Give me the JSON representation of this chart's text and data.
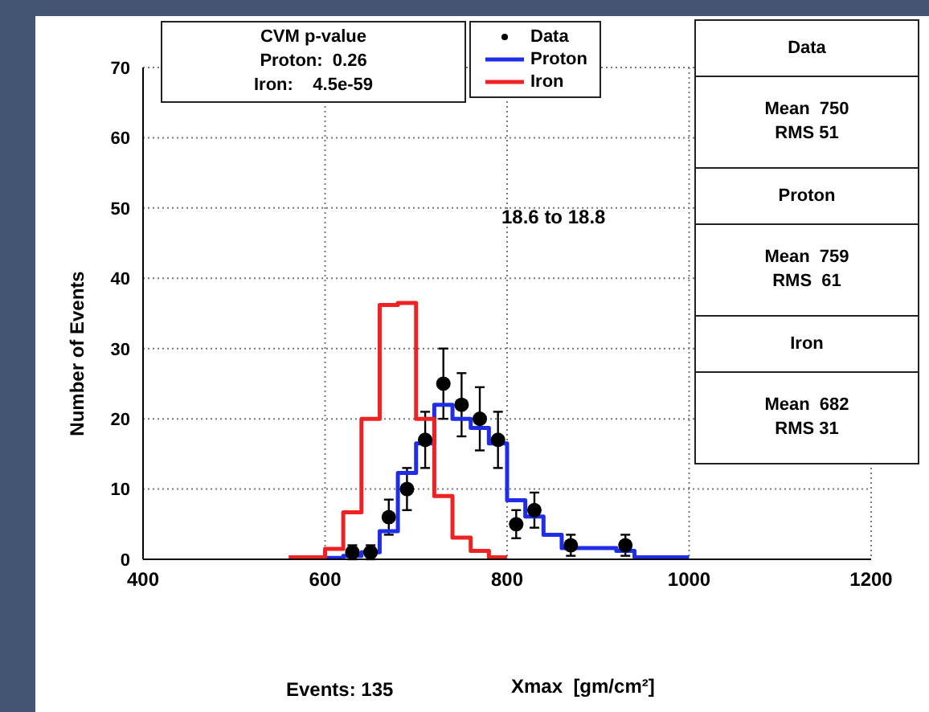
{
  "chart_data": {
    "type": "histogram",
    "xlabel": "Xmax  [gm/cm²]",
    "ylabel": "Number of Events",
    "xlim": [
      400,
      1200
    ],
    "xticks": [
      400,
      600,
      800,
      1000,
      1200
    ],
    "ylim": [
      0,
      70
    ],
    "yticks": [
      0,
      10,
      20,
      30,
      40,
      50,
      60,
      70
    ],
    "grid": true,
    "legend": "top",
    "series": [
      {
        "name": "Data",
        "type": "scatter",
        "color": "#000000",
        "marker": "circle",
        "x": [
          630,
          650,
          670,
          690,
          710,
          730,
          750,
          770,
          790,
          810,
          830,
          870,
          930
        ],
        "values": [
          1,
          1,
          6,
          10,
          17,
          25,
          22,
          20,
          17,
          5,
          7,
          2,
          2
        ],
        "errors": [
          1,
          1,
          2.5,
          3,
          4,
          5,
          4.5,
          4.5,
          4,
          2,
          2.5,
          1.5,
          1.5
        ]
      },
      {
        "name": "Proton",
        "color": "#1f2ee6",
        "bins": [
          600,
          620,
          640,
          660,
          680,
          700,
          720,
          740,
          760,
          780,
          800,
          820,
          840,
          860,
          880,
          900,
          920,
          940,
          960,
          980,
          1000
        ],
        "values": [
          0.2,
          0.5,
          1,
          4,
          12.3,
          16.5,
          22,
          20,
          18.7,
          16.5,
          8.4,
          6.1,
          3.5,
          1.6,
          1.6,
          1.6,
          1.2,
          0.3,
          0.3,
          0.3
        ]
      },
      {
        "name": "Iron",
        "color": "#ee2222",
        "bins": [
          560,
          580,
          600,
          620,
          640,
          660,
          680,
          700,
          720,
          740,
          760,
          780,
          800
        ],
        "values": [
          0.3,
          0.3,
          1.5,
          6.7,
          20,
          36.2,
          36.5,
          20,
          9,
          3.1,
          1.2,
          0.3
        ]
      }
    ],
    "annotations": [
      "CVM p-value",
      "Proton:  0.26",
      "Iron:    4.5e-59",
      "18.6 to 18.8",
      "Data",
      "Mean  750",
      "RMS 51",
      "Proton",
      "Mean  759",
      "RMS  61",
      "Iron",
      "Mean  682",
      "RMS 31",
      "Events: 135"
    ]
  }
}
